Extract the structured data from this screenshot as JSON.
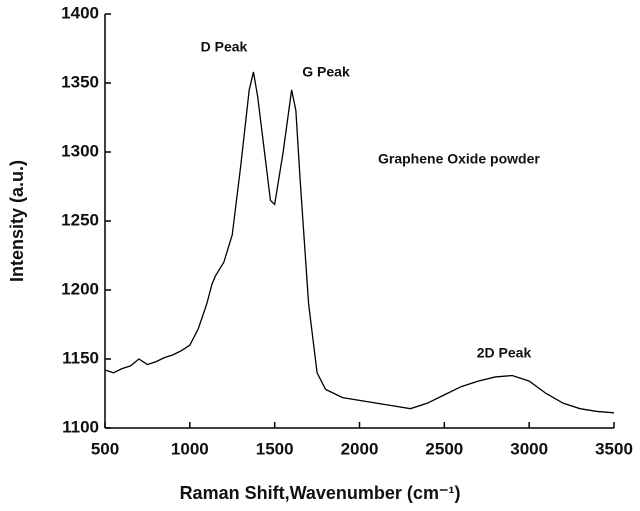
{
  "chart_data": {
    "type": "line",
    "xlabel": "Raman Shift,Wavenumber (cm⁻¹)",
    "ylabel": "Intensity (a.u.)",
    "annotations": [
      "D Peak",
      "G Peak",
      "Graphene Oxide powder",
      "2D Peak"
    ],
    "x": [
      500,
      550,
      600,
      650,
      700,
      750,
      800,
      850,
      900,
      950,
      1000,
      1050,
      1100,
      1130,
      1150,
      1200,
      1250,
      1300,
      1350,
      1375,
      1400,
      1450,
      1475,
      1500,
      1550,
      1600,
      1625,
      1650,
      1700,
      1750,
      1800,
      1900,
      2000,
      2100,
      2200,
      2300,
      2400,
      2500,
      2600,
      2700,
      2800,
      2900,
      3000,
      3100,
      3200,
      3300,
      3400,
      3500
    ],
    "series": [
      {
        "color": "#000000",
        "values": [
          1142,
          1140,
          1143,
          1145,
          1150,
          1146,
          1148,
          1151,
          1153,
          1156,
          1160,
          1172,
          1190,
          1204,
          1210,
          1220,
          1240,
          1290,
          1345,
          1358,
          1340,
          1290,
          1265,
          1262,
          1300,
          1345,
          1330,
          1280,
          1190,
          1140,
          1128,
          1122,
          1120,
          1118,
          1116,
          1114,
          1118,
          1124,
          1130,
          1134,
          1137,
          1138,
          1134,
          1125,
          1118,
          1114,
          1112,
          1111
        ]
      }
    ],
    "xlim": [
      500,
      3500
    ],
    "xticks": [
      500,
      1000,
      1500,
      2000,
      2500,
      3000,
      3500
    ],
    "ylim": [
      1100,
      1400
    ],
    "yticks": [
      1100,
      1150,
      1200,
      1250,
      1300,
      1350,
      1400
    ]
  }
}
